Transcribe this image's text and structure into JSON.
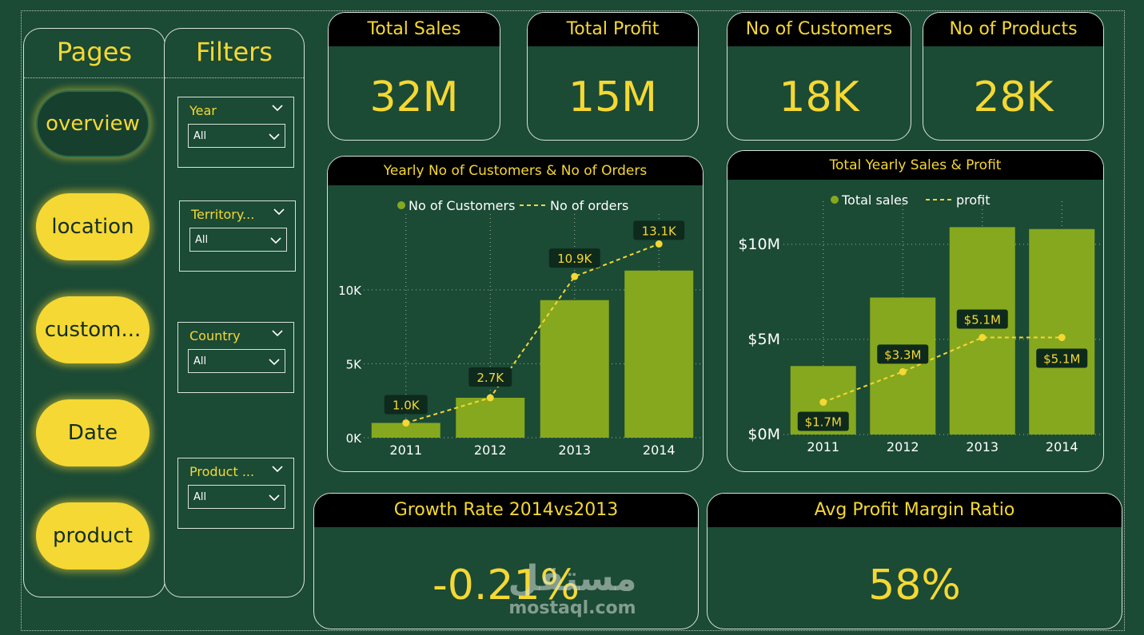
{
  "pages": {
    "title": "Pages",
    "items": [
      {
        "label": "overview",
        "active": true
      },
      {
        "label": "location",
        "active": false
      },
      {
        "label": "custom...",
        "active": false
      },
      {
        "label": "Date",
        "active": false
      },
      {
        "label": "product",
        "active": false
      }
    ]
  },
  "filters": {
    "title": "Filters",
    "items": [
      {
        "label": "Year",
        "value": "All"
      },
      {
        "label": "Territory...",
        "value": "All"
      },
      {
        "label": "Country",
        "value": "All"
      },
      {
        "label": "Product ...",
        "value": "All"
      }
    ]
  },
  "kpis": {
    "total_sales": {
      "title": "Total Sales",
      "value": "32M"
    },
    "total_profit": {
      "title": "Total Profit",
      "value": "15M"
    },
    "customers": {
      "title": "No of Customers",
      "value": "18K"
    },
    "products": {
      "title": "No of Products",
      "value": "28K"
    },
    "growth": {
      "title": "Growth Rate 2014vs2013",
      "value": "-0.21%"
    },
    "margin": {
      "title": "Avg Profit Margin Ratio",
      "value": "58%"
    }
  },
  "colors": {
    "accent": "#f5d833",
    "bar": "#86a81e",
    "background": "#1b4a35",
    "header": "#000000"
  },
  "chart_data": [
    {
      "type": "bar",
      "title": "Yearly No of Customers & No of Orders",
      "categories": [
        "2011",
        "2012",
        "2013",
        "2014"
      ],
      "series": [
        {
          "name": "No of Customers",
          "kind": "bar",
          "values": [
            1000,
            2700,
            9300,
            11300
          ]
        },
        {
          "name": "No of orders",
          "kind": "line",
          "values": [
            1000,
            2700,
            10900,
            13100
          ],
          "labels": [
            "1.0K",
            "2.7K",
            "10.9K",
            "13.1K"
          ]
        }
      ],
      "yticks": [
        "0K",
        "5K",
        "10K"
      ],
      "ytick_values": [
        0,
        5000,
        10000
      ],
      "ylim": [
        0,
        13500
      ],
      "legend": [
        "No of Customers",
        "No of orders"
      ]
    },
    {
      "type": "bar",
      "title": "Total Yearly Sales & Profit",
      "categories": [
        "2011",
        "2012",
        "2013",
        "2014"
      ],
      "series": [
        {
          "name": "Total sales",
          "kind": "bar",
          "values": [
            3.6,
            7.2,
            10.9,
            10.8
          ]
        },
        {
          "name": "profit",
          "kind": "line",
          "values": [
            1.7,
            3.3,
            5.1,
            5.1
          ],
          "labels": [
            "$1.7M",
            "$3.3M",
            "$5.1M",
            "$5.1M"
          ]
        }
      ],
      "yticks": [
        "$0M",
        "$5M",
        "$10M"
      ],
      "ytick_values": [
        0,
        5,
        10
      ],
      "ylim": [
        0,
        11
      ],
      "legend": [
        "Total sales",
        "profit"
      ]
    }
  ],
  "watermark": {
    "arabic": "مستقل",
    "latin": "mostaql.com"
  }
}
